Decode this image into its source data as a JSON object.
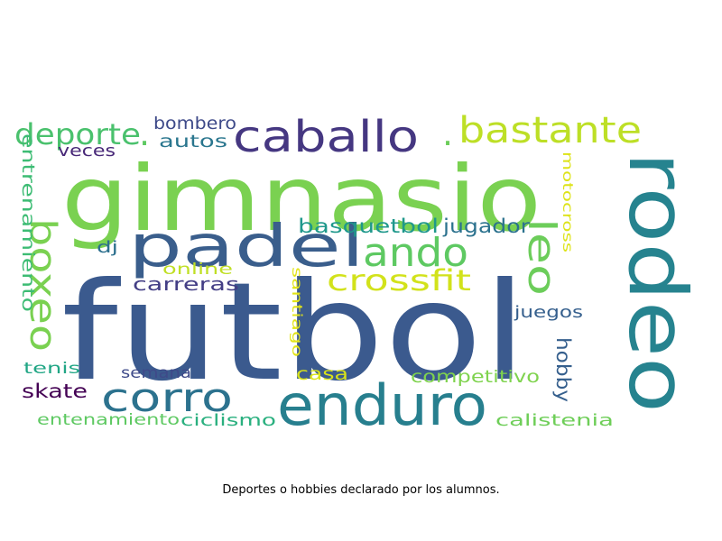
{
  "caption": "Deportes o hobbies declarado por los alumnos.",
  "words": [
    {
      "text": "futbol",
      "color": "#3b5a8e"
    },
    {
      "text": "gimnasio",
      "color": "#7ad151"
    },
    {
      "text": "rodeo",
      "color": "#26838f"
    },
    {
      "text": "padel",
      "color": "#3a5e8c"
    },
    {
      "text": "caballo",
      "color": "#453781"
    },
    {
      "text": "bastante",
      "color": "#bddf26"
    },
    {
      "text": "enduro",
      "color": "#277f8e"
    },
    {
      "text": "corro",
      "color": "#2c728e"
    },
    {
      "text": "ando",
      "color": "#5ec962"
    },
    {
      "text": "deporte",
      "color": "#4ac16d"
    },
    {
      "text": "boxeo",
      "color": "#7ad151"
    },
    {
      "text": "leo",
      "color": "#6ccd5a"
    },
    {
      "text": "crossfit",
      "color": "#d2e21b"
    },
    {
      "text": "entrenamiento",
      "color": "#3dbc74"
    },
    {
      "text": "basquetbol",
      "color": "#1f988b"
    },
    {
      "text": "jugador",
      "color": "#2c728e"
    },
    {
      "text": "bombero",
      "color": "#3e4a89"
    },
    {
      "text": "autos",
      "color": "#2a768e"
    },
    {
      "text": "veces",
      "color": "#482878"
    },
    {
      "text": "carreras",
      "color": "#433e85"
    },
    {
      "text": "online",
      "color": "#c0df25"
    },
    {
      "text": "dj",
      "color": "#2d708e"
    },
    {
      "text": "motocross",
      "color": "#dde318"
    },
    {
      "text": "santiago",
      "color": "#e2e418"
    },
    {
      "text": "juegos",
      "color": "#355f8d"
    },
    {
      "text": "hobby",
      "color": "#355f8d"
    },
    {
      "text": "casa",
      "color": "#d8e219"
    },
    {
      "text": "competitivo",
      "color": "#7fd34e"
    },
    {
      "text": "semana",
      "color": "#3e4a89"
    },
    {
      "text": "tenis",
      "color": "#21a685"
    },
    {
      "text": "skate",
      "color": "#440154"
    },
    {
      "text": "entenamiento",
      "color": "#5ec962"
    },
    {
      "text": "ciclismo",
      "color": "#2ab07f"
    },
    {
      "text": "calistenia",
      "color": "#6ece58"
    },
    {
      "text": ".",
      "color": "#5ec962"
    },
    {
      "text": ".",
      "color": "#6ccd5a"
    }
  ]
}
